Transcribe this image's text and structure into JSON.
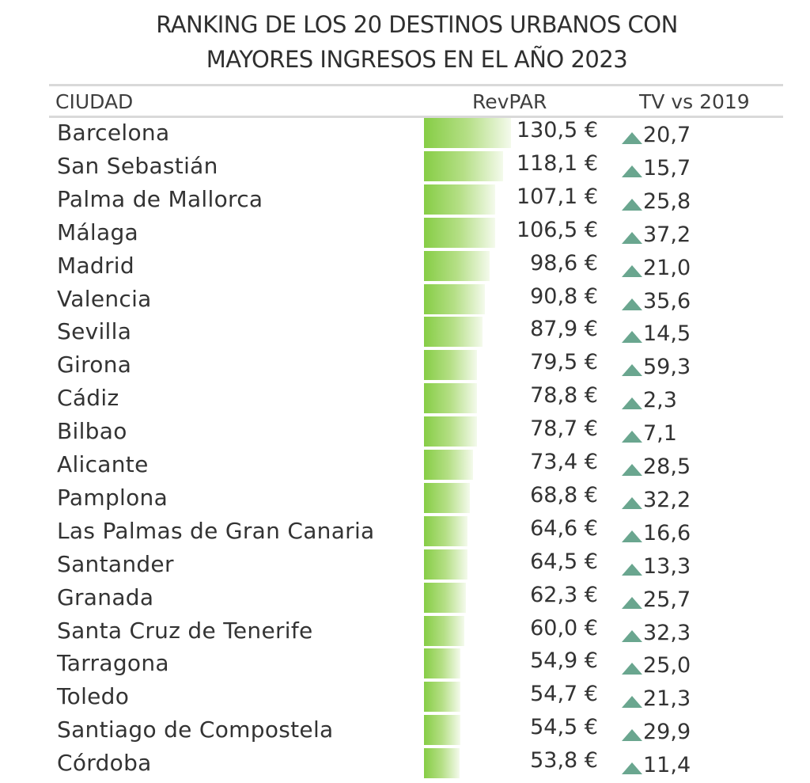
{
  "title_line1": "RANKING DE LOS 20 DESTINOS URBANOS CON",
  "title_line2": "MAYORES INGRESOS EN EL AÑO 2023",
  "headers": {
    "city": "CIUDAD",
    "revpar": "RevPAR",
    "tv": "TV vs 2019"
  },
  "colors": {
    "bar_start": "#86cd45",
    "bar_end": "#f4faec",
    "up_triangle": "#6aa68f",
    "rule": "#d9d9d9"
  },
  "chart_data": {
    "type": "table",
    "title": "RANKING DE LOS 20 DESTINOS URBANOS CON MAYORES INGRESOS EN EL AÑO 2023",
    "columns": [
      "CIUDAD",
      "RevPAR",
      "TV vs 2019"
    ],
    "revpar_unit": "€",
    "tv_direction_icon": "up-triangle-icon",
    "rows": [
      {
        "city": "Barcelona",
        "revpar": 130.5,
        "revpar_label": "130,5 €",
        "tv": 20.7,
        "tv_label": "20,7"
      },
      {
        "city": "San Sebastián",
        "revpar": 118.1,
        "revpar_label": "118,1 €",
        "tv": 15.7,
        "tv_label": "15,7"
      },
      {
        "city": "Palma de Mallorca",
        "revpar": 107.1,
        "revpar_label": "107,1 €",
        "tv": 25.8,
        "tv_label": "25,8"
      },
      {
        "city": "Málaga",
        "revpar": 106.5,
        "revpar_label": "106,5 €",
        "tv": 37.2,
        "tv_label": "37,2"
      },
      {
        "city": "Madrid",
        "revpar": 98.6,
        "revpar_label": "98,6 €",
        "tv": 21.0,
        "tv_label": "21,0"
      },
      {
        "city": "Valencia",
        "revpar": 90.8,
        "revpar_label": "90,8 €",
        "tv": 35.6,
        "tv_label": "35,6"
      },
      {
        "city": "Sevilla",
        "revpar": 87.9,
        "revpar_label": "87,9 €",
        "tv": 14.5,
        "tv_label": "14,5"
      },
      {
        "city": "Girona",
        "revpar": 79.5,
        "revpar_label": "79,5 €",
        "tv": 59.3,
        "tv_label": "59,3"
      },
      {
        "city": "Cádiz",
        "revpar": 78.8,
        "revpar_label": "78,8 €",
        "tv": 2.3,
        "tv_label": "2,3"
      },
      {
        "city": "Bilbao",
        "revpar": 78.7,
        "revpar_label": "78,7 €",
        "tv": 7.1,
        "tv_label": "7,1"
      },
      {
        "city": "Alicante",
        "revpar": 73.4,
        "revpar_label": "73,4 €",
        "tv": 28.5,
        "tv_label": "28,5"
      },
      {
        "city": "Pamplona",
        "revpar": 68.8,
        "revpar_label": "68,8 €",
        "tv": 32.2,
        "tv_label": "32,2"
      },
      {
        "city": "Las Palmas de Gran Canaria",
        "revpar": 64.6,
        "revpar_label": "64,6 €",
        "tv": 16.6,
        "tv_label": "16,6"
      },
      {
        "city": "Santander",
        "revpar": 64.5,
        "revpar_label": "64,5 €",
        "tv": 13.3,
        "tv_label": "13,3"
      },
      {
        "city": "Granada",
        "revpar": 62.3,
        "revpar_label": "62,3 €",
        "tv": 25.7,
        "tv_label": "25,7"
      },
      {
        "city": "Santa Cruz de Tenerife",
        "revpar": 60.0,
        "revpar_label": "60,0 €",
        "tv": 32.3,
        "tv_label": "32,3"
      },
      {
        "city": "Tarragona",
        "revpar": 54.9,
        "revpar_label": "54,9 €",
        "tv": 25.0,
        "tv_label": "25,0"
      },
      {
        "city": "Toledo",
        "revpar": 54.7,
        "revpar_label": "54,7 €",
        "tv": 21.3,
        "tv_label": "21,3"
      },
      {
        "city": "Santiago de Compostela",
        "revpar": 54.5,
        "revpar_label": "54,5 €",
        "tv": 29.9,
        "tv_label": "29,9"
      },
      {
        "city": "Córdoba",
        "revpar": 53.8,
        "revpar_label": "53,8 €",
        "tv": 11.4,
        "tv_label": "11,4"
      }
    ]
  }
}
